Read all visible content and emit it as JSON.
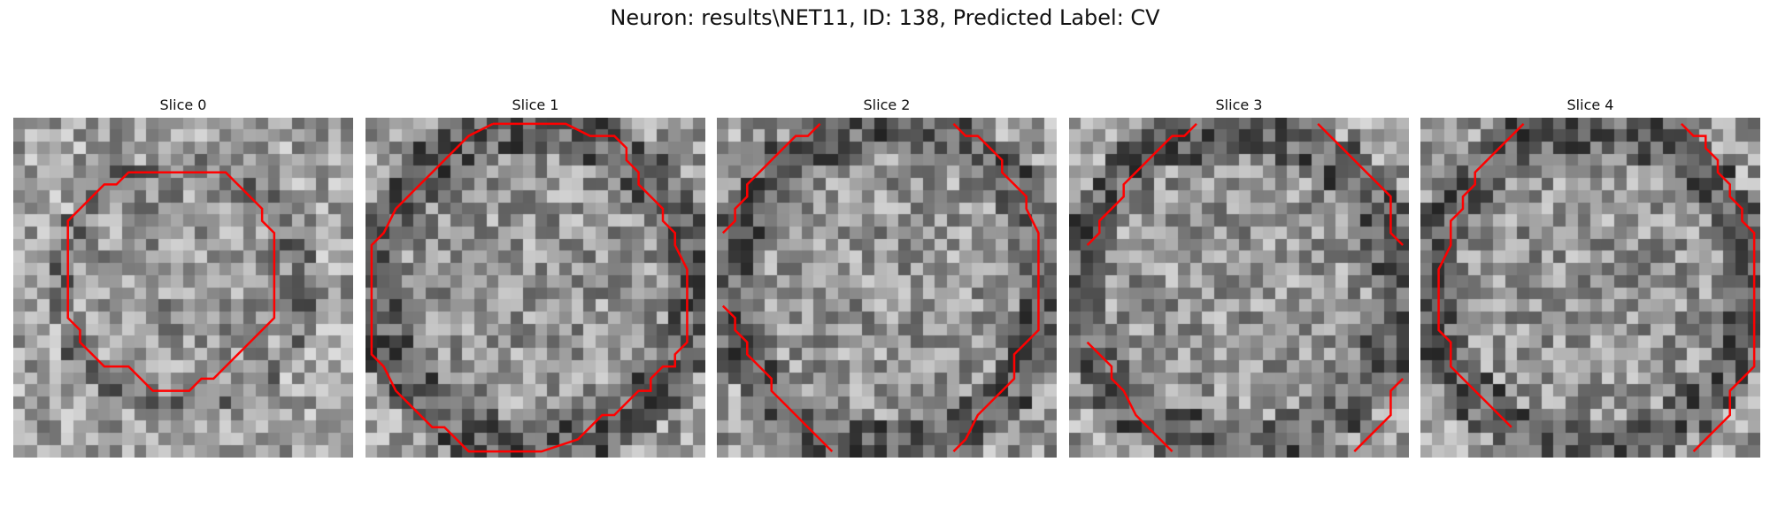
{
  "title": "Neuron: results\\NET11, ID: 138, Predicted Label: CV",
  "panels": [
    {
      "title": "Slice 0",
      "pattern": "ring",
      "seed": 11,
      "contour": [
        [
          11,
          4
        ],
        [
          17,
          4
        ],
        [
          20,
          7
        ],
        [
          20,
          8
        ],
        [
          21,
          9
        ],
        [
          21,
          16
        ],
        [
          20,
          17
        ],
        [
          19,
          18
        ],
        [
          17,
          20
        ],
        [
          16,
          21
        ],
        [
          15,
          21
        ],
        [
          14,
          22
        ],
        [
          11,
          22
        ],
        [
          10,
          21
        ],
        [
          9,
          20
        ],
        [
          7,
          20
        ],
        [
          6,
          19
        ],
        [
          5,
          18
        ],
        [
          5,
          17
        ],
        [
          4,
          16
        ],
        [
          4,
          8
        ],
        [
          5,
          7
        ],
        [
          6,
          6
        ],
        [
          7,
          5
        ],
        [
          8,
          5
        ],
        [
          9,
          4
        ],
        [
          11,
          4
        ]
      ]
    },
    {
      "title": "Slice 1",
      "pattern": "ring",
      "seed": 23,
      "contour": [
        [
          10,
          0
        ],
        [
          16,
          0
        ],
        [
          18,
          1
        ],
        [
          20,
          1
        ],
        [
          21,
          2
        ],
        [
          21,
          3
        ],
        [
          22,
          4
        ],
        [
          22,
          5
        ],
        [
          23,
          6
        ],
        [
          24,
          7
        ],
        [
          24,
          8
        ],
        [
          25,
          9
        ],
        [
          25,
          10
        ],
        [
          26,
          12
        ],
        [
          26,
          18
        ],
        [
          25,
          19
        ],
        [
          25,
          20
        ],
        [
          24,
          20
        ],
        [
          23,
          21
        ],
        [
          23,
          22
        ],
        [
          22,
          22
        ],
        [
          21,
          23
        ],
        [
          20,
          24
        ],
        [
          19,
          24
        ],
        [
          18,
          25
        ],
        [
          17,
          26
        ],
        [
          14,
          27
        ],
        [
          8,
          27
        ],
        [
          7,
          26
        ],
        [
          6,
          25
        ],
        [
          5,
          25
        ],
        [
          4,
          24
        ],
        [
          3,
          23
        ],
        [
          2,
          22
        ],
        [
          1,
          20
        ],
        [
          0,
          19
        ],
        [
          0,
          10
        ],
        [
          1,
          9
        ],
        [
          2,
          7
        ],
        [
          3,
          6
        ],
        [
          4,
          5
        ],
        [
          5,
          4
        ],
        [
          6,
          3
        ],
        [
          7,
          2
        ],
        [
          8,
          1
        ],
        [
          10,
          0
        ]
      ]
    },
    {
      "title": "Slice 2",
      "pattern": "ring2",
      "seed": 37,
      "contour": [],
      "segments": [
        [
          [
            0,
            9
          ],
          [
            1,
            8
          ],
          [
            1,
            7
          ],
          [
            2,
            6
          ],
          [
            2,
            5
          ],
          [
            3,
            4
          ],
          [
            4,
            3
          ],
          [
            5,
            2
          ],
          [
            6,
            1
          ],
          [
            7,
            1
          ],
          [
            8,
            0
          ]
        ],
        [
          [
            19,
            0
          ],
          [
            20,
            1
          ],
          [
            21,
            1
          ],
          [
            22,
            2
          ],
          [
            23,
            3
          ],
          [
            23,
            4
          ],
          [
            24,
            5
          ],
          [
            25,
            6
          ],
          [
            25,
            7
          ],
          [
            26,
            9
          ],
          [
            26,
            17
          ],
          [
            25,
            18
          ],
          [
            24,
            19
          ],
          [
            24,
            21
          ],
          [
            23,
            22
          ],
          [
            22,
            23
          ],
          [
            21,
            24
          ],
          [
            20,
            26
          ],
          [
            19,
            27
          ]
        ],
        [
          [
            0,
            15
          ],
          [
            1,
            16
          ],
          [
            1,
            17
          ],
          [
            2,
            18
          ],
          [
            2,
            19
          ],
          [
            3,
            20
          ],
          [
            4,
            21
          ],
          [
            4,
            22
          ],
          [
            5,
            23
          ],
          [
            6,
            24
          ],
          [
            7,
            25
          ],
          [
            8,
            26
          ],
          [
            9,
            27
          ]
        ]
      ]
    },
    {
      "title": "Slice 3",
      "pattern": "ring3",
      "seed": 51,
      "contour": [],
      "segments": [
        [
          [
            1,
            10
          ],
          [
            2,
            9
          ],
          [
            2,
            8
          ],
          [
            3,
            7
          ],
          [
            4,
            6
          ],
          [
            4,
            5
          ],
          [
            5,
            4
          ],
          [
            6,
            3
          ],
          [
            7,
            2
          ],
          [
            8,
            1
          ],
          [
            9,
            1
          ],
          [
            10,
            0
          ]
        ],
        [
          [
            20,
            0
          ],
          [
            21,
            1
          ],
          [
            22,
            2
          ],
          [
            23,
            3
          ],
          [
            24,
            4
          ],
          [
            25,
            5
          ],
          [
            26,
            6
          ],
          [
            26,
            9
          ],
          [
            27,
            10
          ]
        ],
        [
          [
            1,
            18
          ],
          [
            2,
            19
          ],
          [
            3,
            20
          ],
          [
            3,
            21
          ],
          [
            4,
            22
          ],
          [
            5,
            24
          ],
          [
            6,
            25
          ],
          [
            7,
            26
          ],
          [
            8,
            27
          ]
        ],
        [
          [
            27,
            21
          ],
          [
            26,
            22
          ],
          [
            26,
            24
          ],
          [
            25,
            25
          ],
          [
            24,
            26
          ],
          [
            23,
            27
          ]
        ]
      ]
    },
    {
      "title": "Slice 4",
      "pattern": "ring4",
      "seed": 67,
      "contour": [],
      "segments": [
        [
          [
            8,
            0
          ],
          [
            7,
            1
          ],
          [
            6,
            2
          ],
          [
            5,
            3
          ],
          [
            4,
            4
          ],
          [
            4,
            5
          ],
          [
            3,
            6
          ],
          [
            3,
            7
          ],
          [
            2,
            8
          ],
          [
            2,
            10
          ],
          [
            1,
            12
          ],
          [
            1,
            17
          ],
          [
            2,
            18
          ],
          [
            2,
            20
          ],
          [
            3,
            21
          ],
          [
            4,
            22
          ],
          [
            5,
            23
          ],
          [
            6,
            24
          ],
          [
            7,
            25
          ]
        ],
        [
          [
            21,
            0
          ],
          [
            22,
            1
          ],
          [
            23,
            1
          ],
          [
            23,
            2
          ],
          [
            24,
            3
          ],
          [
            24,
            4
          ],
          [
            25,
            5
          ],
          [
            25,
            6
          ],
          [
            26,
            7
          ],
          [
            26,
            8
          ],
          [
            27,
            9
          ],
          [
            27,
            20
          ],
          [
            26,
            21
          ],
          [
            25,
            22
          ],
          [
            25,
            24
          ],
          [
            24,
            25
          ],
          [
            23,
            26
          ],
          [
            22,
            27
          ]
        ]
      ]
    }
  ]
}
